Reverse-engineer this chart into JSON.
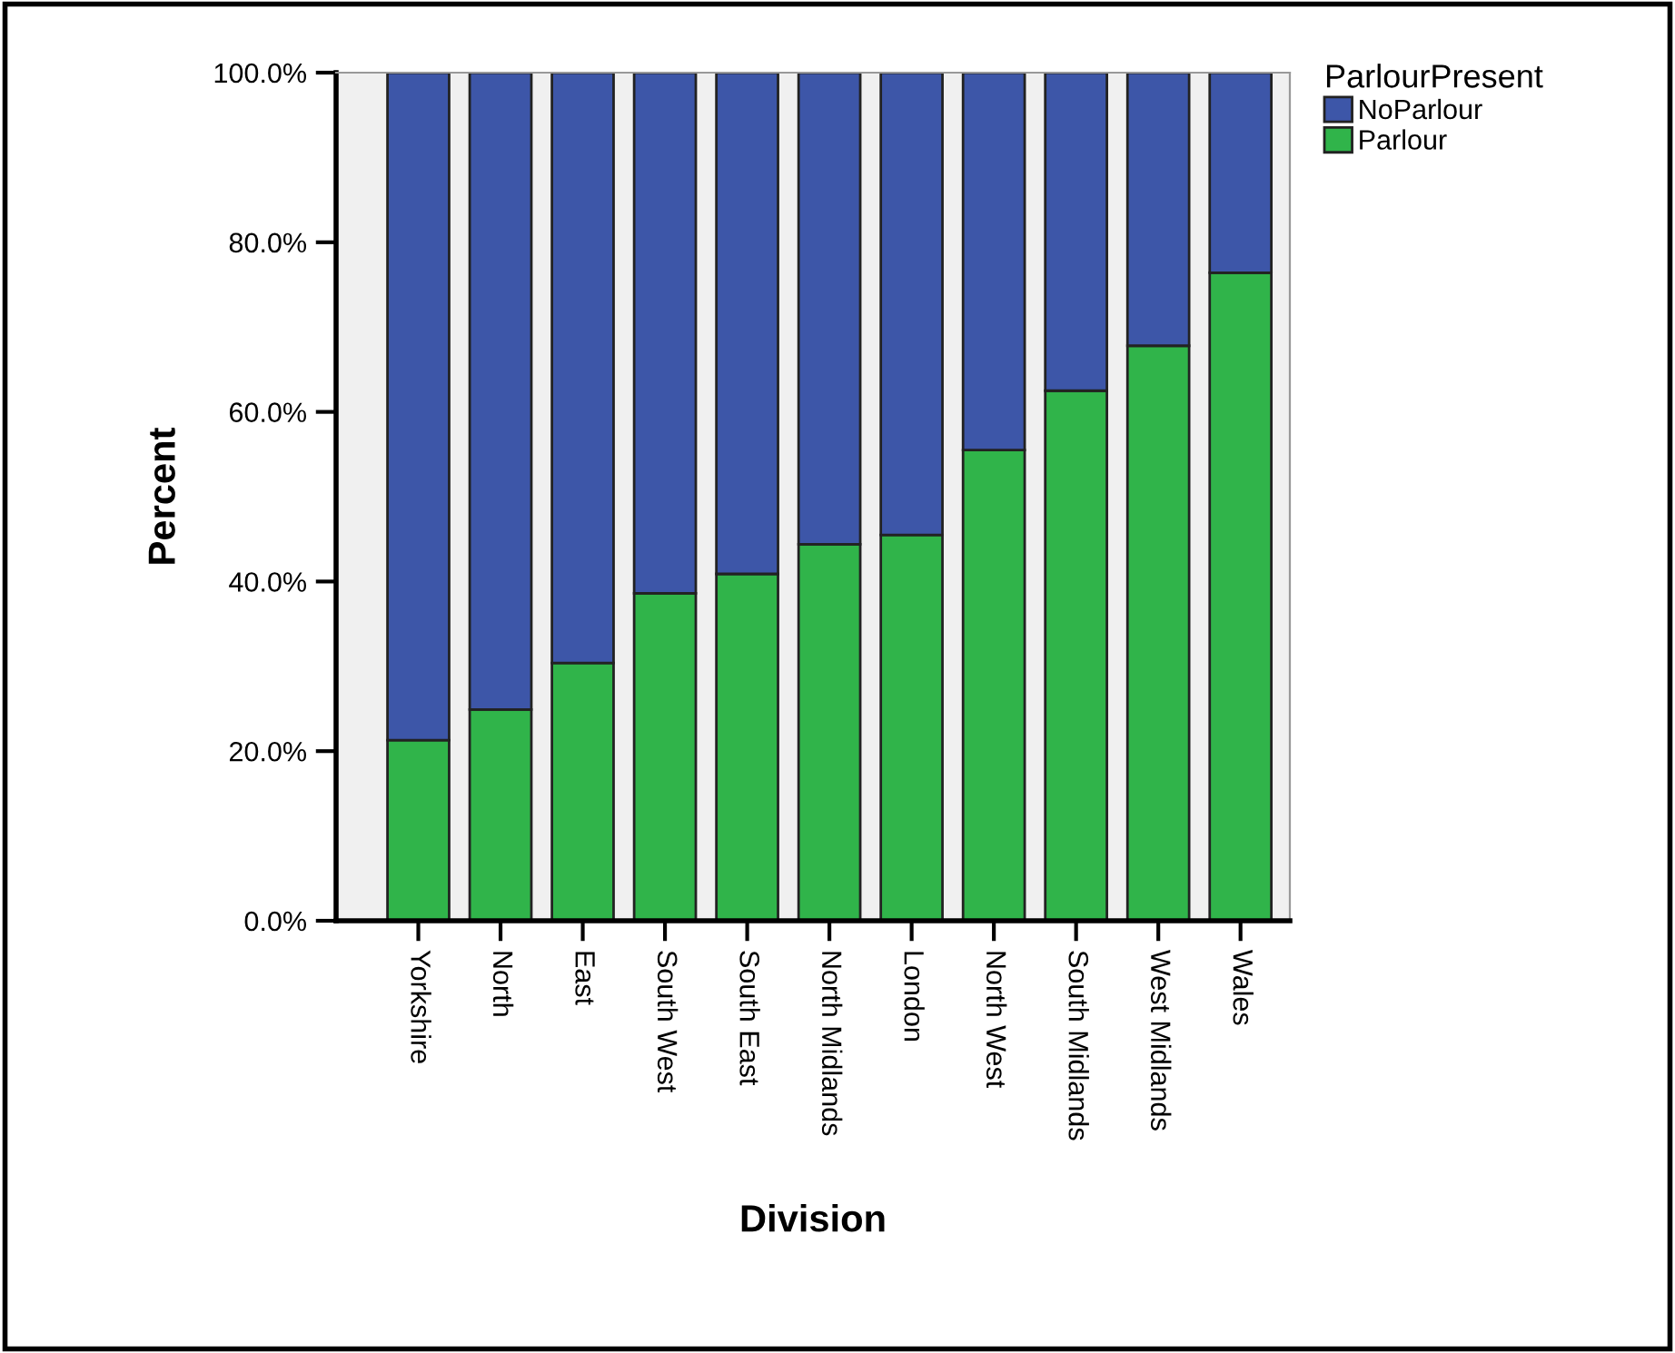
{
  "chart_data": {
    "type": "bar",
    "stacked": true,
    "xlabel": "Division",
    "ylabel": "Percent",
    "legend_title": "ParlourPresent",
    "legend": "top right",
    "categories": [
      "Yorkshire",
      "North",
      "East",
      "South West",
      "South East",
      "North Midlands",
      "London",
      "North West",
      "South Midlands",
      "West Midlands",
      "Wales"
    ],
    "series": [
      {
        "name": "Parlour",
        "color": "#30b44a",
        "values": [
          21.3,
          24.9,
          30.4,
          38.6,
          40.9,
          44.4,
          45.5,
          55.5,
          62.5,
          67.8,
          76.4
        ]
      },
      {
        "name": "NoParlour",
        "color": "#3d56a8",
        "values": [
          78.7,
          75.1,
          69.6,
          61.4,
          59.1,
          55.6,
          54.5,
          44.5,
          37.5,
          32.2,
          23.6
        ]
      }
    ],
    "ylim": [
      0,
      100
    ],
    "yticks": [
      {
        "value": 0,
        "label": "0.0%"
      },
      {
        "value": 20,
        "label": "20.0%"
      },
      {
        "value": 40,
        "label": "40.0%"
      },
      {
        "value": 60,
        "label": "60.0%"
      },
      {
        "value": 80,
        "label": "80.0%"
      },
      {
        "value": 100,
        "label": "100.0%"
      }
    ],
    "grid": false
  }
}
